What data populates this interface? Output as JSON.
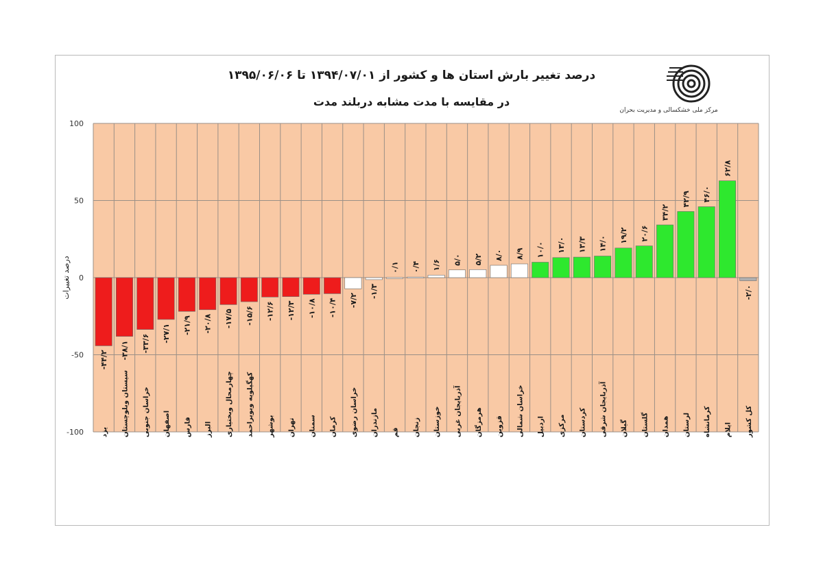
{
  "chart_data": {
    "type": "bar",
    "title": "درصد تغییر بارش استان ها و کشور از ۱۳۹۴/۰۷/۰۱ تا ۱۳۹۵/۰۶/۰۶",
    "subtitle": "در مقایسه با مدت مشابه دربلند مدت",
    "ylabel": "درصد تغییرات",
    "xlabel": "",
    "ylim": [
      -100,
      100
    ],
    "yticks": [
      100,
      50,
      0,
      -50,
      -100
    ],
    "ytick_labels": [
      "100",
      "50",
      "0",
      "-50",
      "-100"
    ],
    "grid": true,
    "categories": [
      "یزد",
      "سیستان وبلوچستان",
      "خراسان جنوبی",
      "اصفهان",
      "فارس",
      "البرز",
      "چهارمحال وبختیاری",
      "کهگیلویه وبویراحمد",
      "بوشهر",
      "تهران",
      "سمنان",
      "کرمان",
      "خراسان رضوی",
      "مازندران",
      "قم",
      "زنجان",
      "خوزستان",
      "آذربایجان غربی",
      "هرمزگان",
      "قزوین",
      "خراسان شمالی",
      "اردبیل",
      "مرکزی",
      "کردستان",
      "آذربایجان شرقی",
      "گیلان",
      "گلستان",
      "همدان",
      "لرستان",
      "کرمانشاه",
      "ایلام",
      "کل کشور"
    ],
    "values": [
      -44.2,
      -38.1,
      -33.6,
      -27.1,
      -21.9,
      -20.8,
      -17.5,
      -15.6,
      -12.6,
      -12.3,
      -10.8,
      -10.4,
      -7.2,
      -1.3,
      0.1,
      0.4,
      1.6,
      5.0,
      5.2,
      8.0,
      8.9,
      10.0,
      13.0,
      13.3,
      14.0,
      19.2,
      20.6,
      34.2,
      42.9,
      46.0,
      62.8,
      -2.0
    ],
    "value_labels": [
      "-۴۴/۲",
      "-۳۸/۱",
      "-۳۳/۶",
      "-۲۷/۱",
      "-۲۱/۹",
      "-۲۰/۸",
      "-۱۷/۵",
      "-۱۵/۶",
      "-۱۲/۶",
      "-۱۲/۳",
      "-۱۰/۸",
      "-۱۰/۴",
      "-۷/۲",
      "-۱/۳",
      "۰/۱",
      "۰/۴",
      "۱/۶",
      "۵/۰",
      "۵/۲",
      "۸/۰",
      "۸/۹",
      "۱۰/۰",
      "۱۳/۰",
      "۱۳/۳",
      "۱۴/۰",
      "۱۹/۲",
      "۲۰/۶",
      "۳۴/۲",
      "۴۲/۹",
      "۴۶/۰",
      "۶۲/۸",
      "-۲/۰"
    ],
    "bar_colors": [
      "#ee1c1c",
      "#ee1c1c",
      "#ee1c1c",
      "#ee1c1c",
      "#ee1c1c",
      "#ee1c1c",
      "#ee1c1c",
      "#ee1c1c",
      "#ee1c1c",
      "#ee1c1c",
      "#ee1c1c",
      "#ee1c1c",
      "#ffffff",
      "#ffffff",
      "#ffffff",
      "#ffffff",
      "#ffffff",
      "#ffffff",
      "#ffffff",
      "#ffffff",
      "#ffffff",
      "#2ee82e",
      "#2ee82e",
      "#2ee82e",
      "#2ee82e",
      "#2ee82e",
      "#2ee82e",
      "#2ee82e",
      "#2ee82e",
      "#2ee82e",
      "#2ee82e",
      "#b0b0b0"
    ],
    "plot_background": "#f9c9a5"
  },
  "logo": {
    "caption": "مرکز ملی خشکسالی و مدیریت بحران"
  }
}
